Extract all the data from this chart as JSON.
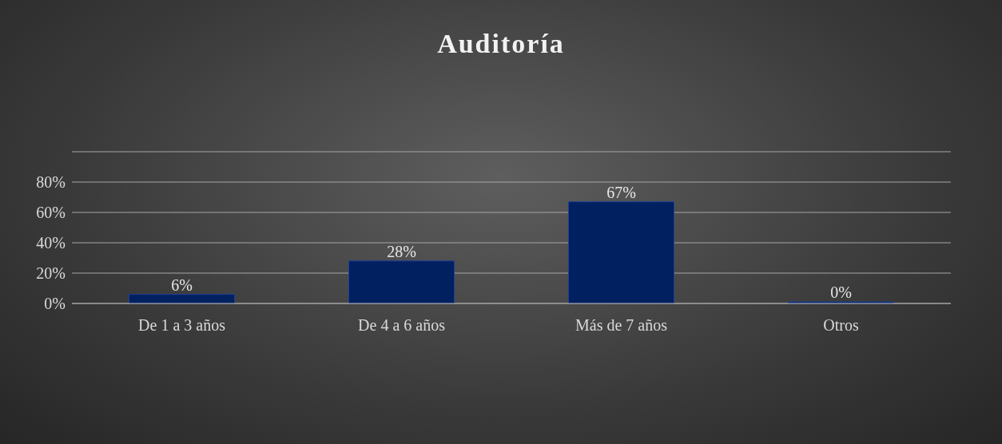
{
  "chart_data": {
    "type": "bar",
    "title": "Auditoría",
    "categories": [
      "De 1 a 3 años",
      "De 4 a 6 años",
      "Más de 7 años",
      "Otros"
    ],
    "values": [
      6,
      28,
      67,
      0
    ],
    "color": "#002060",
    "value_labels": [
      "6%",
      "28%",
      "67%",
      "0%"
    ],
    "ylim": [
      0,
      100
    ],
    "yticks": [
      {
        "value": 0,
        "label": "0%"
      },
      {
        "value": 20,
        "label": "20%"
      },
      {
        "value": 40,
        "label": "40%"
      },
      {
        "value": 60,
        "label": "60%"
      },
      {
        "value": 80,
        "label": "80%"
      },
      {
        "value": 100,
        "label": null
      }
    ],
    "grid": "y"
  }
}
